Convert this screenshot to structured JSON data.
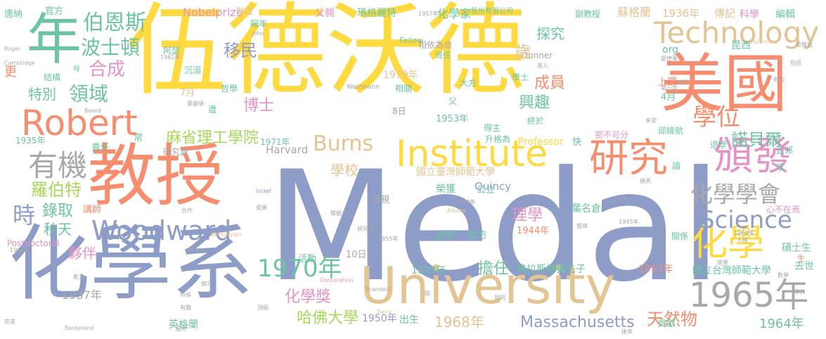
{
  "palette": {
    "blue": "#8e9dc8",
    "yellow": "#ffd940",
    "orange": "#f58d6e",
    "green": "#6cc4a0",
    "pink": "#e593c6",
    "tan": "#e3c493",
    "gray": "#a8a8a8",
    "lime": "#a8d85a"
  },
  "words": [
    {
      "text": "Medal",
      "color": "blue"
    },
    {
      "text": "伍德沃德",
      "color": "yellow"
    },
    {
      "text": "化學系",
      "color": "blue"
    },
    {
      "text": "教授",
      "color": "orange"
    },
    {
      "text": "University",
      "color": "tan"
    },
    {
      "text": "美國",
      "color": "orange"
    },
    {
      "text": "年",
      "color": "green"
    },
    {
      "text": "Institute",
      "color": "yellow"
    },
    {
      "text": "Technology",
      "color": "tan"
    },
    {
      "text": "1965年",
      "color": "gray"
    },
    {
      "text": "研究",
      "color": "orange"
    },
    {
      "text": "頒發",
      "color": "pink"
    },
    {
      "text": "化學",
      "color": "yellow"
    },
    {
      "text": "Robert",
      "color": "orange"
    },
    {
      "text": "Woodward",
      "color": "blue"
    },
    {
      "text": "有機",
      "color": "gray"
    },
    {
      "text": "1970年",
      "color": "green"
    },
    {
      "text": "化學學會",
      "color": "gray"
    },
    {
      "text": "Science",
      "color": "blue"
    },
    {
      "text": "學位",
      "color": "orange"
    },
    {
      "text": "伯恩斯",
      "color": "green"
    },
    {
      "text": "波士頓",
      "color": "green"
    },
    {
      "text": "合成",
      "color": "pink"
    },
    {
      "text": "領域",
      "color": "green"
    },
    {
      "text": "特別",
      "color": "green"
    },
    {
      "text": "時",
      "color": "blue"
    },
    {
      "text": "羅伯特",
      "color": "lime"
    },
    {
      "text": "麻省理工學院",
      "color": "lime"
    },
    {
      "text": "Burns",
      "color": "tan"
    },
    {
      "text": "諾貝爾",
      "color": "green"
    },
    {
      "text": "移民",
      "color": "blue"
    },
    {
      "text": "博士",
      "color": "pink"
    },
    {
      "text": "化學獎",
      "color": "pink"
    },
    {
      "text": "哈佛大學",
      "color": "lime"
    },
    {
      "text": "Massachusetts",
      "color": "blue"
    },
    {
      "text": "天然物",
      "color": "orange"
    },
    {
      "text": "1964年",
      "color": "green"
    },
    {
      "text": "1968年",
      "color": "tan"
    },
    {
      "text": "擔任",
      "color": "green"
    },
    {
      "text": "興趣",
      "color": "green"
    },
    {
      "text": "探究",
      "color": "green"
    },
    {
      "text": "成員",
      "color": "orange"
    },
    {
      "text": "學校",
      "color": "tan"
    },
    {
      "text": "錄取",
      "color": "green"
    },
    {
      "text": "秋天",
      "color": "green"
    },
    {
      "text": "夥伴",
      "color": "pink"
    },
    {
      "text": "理學",
      "color": "pink"
    },
    {
      "text": "Nobelprize",
      "color": "pink"
    },
    {
      "text": "化學家",
      "color": "green"
    },
    {
      "text": "蘇格蘭",
      "color": "tan"
    },
    {
      "text": "1936年",
      "color": "tan"
    },
    {
      "text": "傳記",
      "color": "tan"
    },
    {
      "text": "科學",
      "color": "pink"
    },
    {
      "text": "編輯",
      "color": "green"
    },
    {
      "text": "昆西",
      "color": "green"
    },
    {
      "text": "org",
      "color": "green"
    },
    {
      "text": "上課",
      "color": "orange"
    },
    {
      "text": "1979年",
      "color": "tan"
    },
    {
      "text": "葉名倉",
      "color": "green"
    },
    {
      "text": "1933年",
      "color": "green"
    },
    {
      "text": "格拉斯格獨生子",
      "color": "green"
    },
    {
      "text": "1917年",
      "color": "orange"
    },
    {
      "text": "國立台灣師範大學",
      "color": "green"
    },
    {
      "text": "碩士生",
      "color": "green"
    },
    {
      "text": "去世",
      "color": "green"
    },
    {
      "text": "貢獻",
      "color": "green"
    },
    {
      "text": "英格蘭",
      "color": "green"
    },
    {
      "text": "1950年",
      "color": "blue"
    },
    {
      "text": "出生",
      "color": "green"
    },
    {
      "text": "1937年",
      "color": "gray"
    },
    {
      "text": "Harvard",
      "color": "gray"
    },
    {
      "text": "Quincy",
      "color": "blue"
    },
    {
      "text": "Professor",
      "color": "yellow"
    },
    {
      "text": "國立臺灣師範大學",
      "color": "tan"
    },
    {
      "text": "1953年",
      "color": "green"
    },
    {
      "text": "榮獲",
      "color": "green"
    },
    {
      "text": "母親",
      "color": "gray"
    },
    {
      "text": "公立",
      "color": "green"
    },
    {
      "text": "逝世",
      "color": "green"
    },
    {
      "text": "校方",
      "color": "green"
    },
    {
      "text": "1944年",
      "color": "orange"
    },
    {
      "text": "活動",
      "color": "green"
    },
    {
      "text": "10日",
      "color": "gray"
    },
    {
      "text": "父親",
      "color": "pink"
    },
    {
      "text": "瑪格麗特",
      "color": "green"
    },
    {
      "text": "股份有限公司",
      "color": "green"
    },
    {
      "text": "副教授",
      "color": "green"
    },
    {
      "text": "唐納",
      "color": "green"
    },
    {
      "text": "官方",
      "color": "green"
    },
    {
      "text": "助理",
      "color": "tan"
    },
    {
      "text": "隔年",
      "color": "green"
    },
    {
      "text": "相依為命",
      "color": "gray"
    },
    {
      "text": "Fellow",
      "color": "green"
    },
    {
      "text": "班任",
      "color": "green"
    },
    {
      "text": "Donner",
      "color": "gray"
    },
    {
      "text": "歲",
      "color": "tan"
    },
    {
      "text": "阿瑟",
      "color": "green"
    },
    {
      "text": "沉溺",
      "color": "green"
    },
    {
      "text": "結構",
      "color": "green"
    },
    {
      "text": "更",
      "color": "orange"
    },
    {
      "text": "母",
      "color": "green"
    },
    {
      "text": "哲學",
      "color": "green"
    },
    {
      "text": "7月",
      "color": "tan"
    },
    {
      "text": "遭",
      "color": "green"
    },
    {
      "text": "相關",
      "color": "green"
    },
    {
      "text": "大方",
      "color": "green"
    },
    {
      "text": "8日",
      "color": "blue"
    },
    {
      "text": "父",
      "color": "green"
    },
    {
      "text": "4月",
      "color": "green"
    },
    {
      "text": "終於",
      "color": "green"
    },
    {
      "text": "密不可分",
      "color": "pink"
    },
    {
      "text": "邱緯航",
      "color": "green"
    },
    {
      "text": "退學",
      "color": "green"
    },
    {
      "text": "近郊",
      "color": "green"
    },
    {
      "text": "學士",
      "color": "green"
    },
    {
      "text": "得主",
      "color": "green"
    },
    {
      "text": "升格為",
      "color": "green"
    },
    {
      "text": "常",
      "color": "green"
    },
    {
      "text": "研究員",
      "color": "gray"
    },
    {
      "text": "1971年",
      "color": "green"
    },
    {
      "text": "1935年",
      "color": "green"
    },
    {
      "text": "責任",
      "color": "green"
    },
    {
      "text": "讀",
      "color": "green"
    },
    {
      "text": "快",
      "color": "green"
    },
    {
      "text": "享",
      "color": "green"
    },
    {
      "text": "講師",
      "color": "orange"
    },
    {
      "text": "Postdoctoral",
      "color": "pink"
    },
    {
      "text": "心不在焉",
      "color": "pink"
    },
    {
      "text": "關係",
      "color": "green"
    },
    {
      "text": "生",
      "color": "orange"
    },
    {
      "text": "Weizmann",
      "color": "gray"
    },
    {
      "text": "Wesleyan",
      "color": "tan"
    },
    {
      "text": "Israel",
      "color": "blue"
    },
    {
      "text": "Scott",
      "color": "gray"
    },
    {
      "text": "Brandeis",
      "color": "gray"
    },
    {
      "text": "Davy",
      "color": "tan"
    },
    {
      "text": "Backeland",
      "color": "gray"
    },
    {
      "text": "Corporation",
      "color": "pink"
    },
    {
      "text": "Adams",
      "color": "tan"
    },
    {
      "text": "Cambridge",
      "color": "gray"
    },
    {
      "text": "Roger",
      "color": "gray"
    },
    {
      "text": "John",
      "color": "gray"
    },
    {
      "text": "Beard",
      "color": "gray"
    },
    {
      "text": "Governors",
      "color": "tan"
    },
    {
      "text": "1957年",
      "color": "gray"
    },
    {
      "text": "1961年",
      "color": "gray"
    },
    {
      "text": "1959年",
      "color": "gray"
    },
    {
      "text": "1955年",
      "color": "gray"
    },
    {
      "text": "1966年",
      "color": "gray"
    },
    {
      "text": "1945年",
      "color": "gray"
    },
    {
      "text": "1969年",
      "color": "gray"
    },
    {
      "text": "第一手",
      "color": "gray"
    },
    {
      "text": "華盛頓",
      "color": "gray"
    },
    {
      "text": "相較",
      "color": "gray"
    },
    {
      "text": "愛德華",
      "color": "gray"
    },
    {
      "text": "二十多",
      "color": "gray"
    },
    {
      "text": "研究所",
      "color": "gray"
    },
    {
      "text": "實驗室",
      "color": "gray"
    },
    {
      "text": "獎章",
      "color": "gray"
    },
    {
      "text": "發展出",
      "color": "gray"
    },
    {
      "text": "包括",
      "color": "gray"
    },
    {
      "text": "能力",
      "color": "gray"
    },
    {
      "text": "完美",
      "color": "gray"
    },
    {
      "text": "間",
      "color": "gray"
    },
    {
      "text": "有趣",
      "color": "gray"
    },
    {
      "text": "合作",
      "color": "gray"
    },
    {
      "text": "特殊",
      "color": "gray"
    },
    {
      "text": "發明",
      "color": "gray"
    },
    {
      "text": "最終",
      "color": "gray"
    },
    {
      "text": "成果",
      "color": "gray"
    },
    {
      "text": "人格",
      "color": "gray"
    },
    {
      "text": "優秀",
      "color": "gray"
    },
    {
      "text": "進入",
      "color": "gray"
    },
    {
      "text": "榮譽",
      "color": "gray"
    },
    {
      "text": "享受",
      "color": "gray"
    },
    {
      "text": "就讀",
      "color": "gray"
    },
    {
      "text": "頂級",
      "color": "gray"
    },
    {
      "text": "學界",
      "color": "gray"
    },
    {
      "text": "偏北",
      "color": "gray"
    },
    {
      "text": "數學",
      "color": "gray"
    },
    {
      "text": "後來",
      "color": "gray"
    },
    {
      "text": "擅長",
      "color": "gray"
    },
    {
      "text": "貢獻良多",
      "color": "gray"
    }
  ]
}
